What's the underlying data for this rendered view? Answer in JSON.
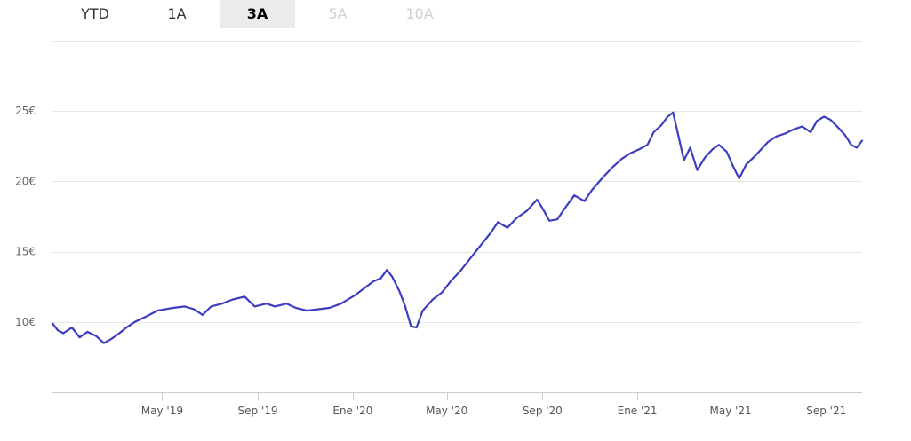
{
  "tabs": [
    {
      "label": "YTD",
      "state": "normal"
    },
    {
      "label": "1A",
      "state": "normal"
    },
    {
      "label": "3A",
      "state": "active"
    },
    {
      "label": "5A",
      "state": "disabled"
    },
    {
      "label": "10A",
      "state": "disabled"
    }
  ],
  "colors": {
    "line": "#3d3dbf",
    "grid": "#e6e6e6",
    "axis": "#cccccc",
    "tab_active_bg": "#ebebeb"
  },
  "chart_data": {
    "type": "line",
    "title": "",
    "xlabel": "",
    "ylabel": "",
    "ylim": [
      5,
      30
    ],
    "xlim": [
      "2018-12-11",
      "2021-10-17"
    ],
    "y_tick_labels": [
      "10€",
      "15€",
      "20€",
      "25€"
    ],
    "y_tick_values": [
      10,
      15,
      20,
      25
    ],
    "x_tick_labels": [
      "May '19",
      "Sep '19",
      "Ene '20",
      "May '20",
      "Sep '20",
      "Ene '21",
      "May '21",
      "Sep '21"
    ],
    "x_tick_dates": [
      "2019-05-01",
      "2019-09-01",
      "2020-01-01",
      "2020-05-01",
      "2020-09-01",
      "2021-01-01",
      "2021-05-01",
      "2021-09-01"
    ],
    "grid": true,
    "legend": "none",
    "series": [
      {
        "points": [
          [
            "2018-12-11",
            9.9
          ],
          [
            "2018-12-18",
            9.4
          ],
          [
            "2018-12-25",
            9.2
          ],
          [
            "2019-01-05",
            9.6
          ],
          [
            "2019-01-15",
            8.9
          ],
          [
            "2019-01-25",
            9.3
          ],
          [
            "2019-02-05",
            9.0
          ],
          [
            "2019-02-15",
            8.5
          ],
          [
            "2019-02-25",
            8.8
          ],
          [
            "2019-03-07",
            9.2
          ],
          [
            "2019-03-16",
            9.6
          ],
          [
            "2019-03-27",
            10.0
          ],
          [
            "2019-04-11",
            10.4
          ],
          [
            "2019-04-25",
            10.8
          ],
          [
            "2019-05-15",
            11.0
          ],
          [
            "2019-05-30",
            11.1
          ],
          [
            "2019-06-11",
            10.9
          ],
          [
            "2019-06-22",
            10.5
          ],
          [
            "2019-07-03",
            11.1
          ],
          [
            "2019-07-17",
            11.3
          ],
          [
            "2019-07-31",
            11.6
          ],
          [
            "2019-08-15",
            11.8
          ],
          [
            "2019-08-28",
            11.1
          ],
          [
            "2019-09-12",
            11.3
          ],
          [
            "2019-09-23",
            11.1
          ],
          [
            "2019-10-08",
            11.3
          ],
          [
            "2019-10-20",
            11.0
          ],
          [
            "2019-11-03",
            10.8
          ],
          [
            "2019-11-18",
            10.9
          ],
          [
            "2019-12-02",
            11.0
          ],
          [
            "2019-12-17",
            11.3
          ],
          [
            "2020-01-04",
            11.9
          ],
          [
            "2020-01-16",
            12.4
          ],
          [
            "2020-01-28",
            12.9
          ],
          [
            "2020-02-06",
            13.1
          ],
          [
            "2020-02-14",
            13.7
          ],
          [
            "2020-02-21",
            13.2
          ],
          [
            "2020-03-01",
            12.2
          ],
          [
            "2020-03-08",
            11.2
          ],
          [
            "2020-03-16",
            9.7
          ],
          [
            "2020-03-23",
            9.6
          ],
          [
            "2020-03-31",
            10.8
          ],
          [
            "2020-04-13",
            11.6
          ],
          [
            "2020-04-25",
            12.1
          ],
          [
            "2020-05-06",
            12.9
          ],
          [
            "2020-05-18",
            13.6
          ],
          [
            "2020-05-31",
            14.5
          ],
          [
            "2020-06-10",
            15.2
          ],
          [
            "2020-06-26",
            16.3
          ],
          [
            "2020-07-06",
            17.1
          ],
          [
            "2020-07-18",
            16.7
          ],
          [
            "2020-07-30",
            17.4
          ],
          [
            "2020-08-12",
            17.9
          ],
          [
            "2020-08-25",
            18.7
          ],
          [
            "2020-09-01",
            18.1
          ],
          [
            "2020-09-10",
            17.2
          ],
          [
            "2020-09-20",
            17.3
          ],
          [
            "2020-09-30",
            18.1
          ],
          [
            "2020-10-12",
            19.0
          ],
          [
            "2020-10-25",
            18.6
          ],
          [
            "2020-11-04",
            19.4
          ],
          [
            "2020-11-18",
            20.3
          ],
          [
            "2020-11-30",
            21.0
          ],
          [
            "2020-12-12",
            21.6
          ],
          [
            "2020-12-23",
            22.0
          ],
          [
            "2021-01-04",
            22.3
          ],
          [
            "2021-01-14",
            22.6
          ],
          [
            "2021-01-22",
            23.5
          ],
          [
            "2021-02-01",
            24.0
          ],
          [
            "2021-02-09",
            24.6
          ],
          [
            "2021-02-16",
            24.9
          ],
          [
            "2021-02-23",
            23.2
          ],
          [
            "2021-03-02",
            21.5
          ],
          [
            "2021-03-10",
            22.4
          ],
          [
            "2021-03-19",
            20.8
          ],
          [
            "2021-03-29",
            21.7
          ],
          [
            "2021-04-08",
            22.3
          ],
          [
            "2021-04-16",
            22.6
          ],
          [
            "2021-04-26",
            22.1
          ],
          [
            "2021-05-04",
            21.1
          ],
          [
            "2021-05-12",
            20.2
          ],
          [
            "2021-05-21",
            21.2
          ],
          [
            "2021-06-03",
            21.9
          ],
          [
            "2021-06-18",
            22.8
          ],
          [
            "2021-06-29",
            23.2
          ],
          [
            "2021-07-10",
            23.4
          ],
          [
            "2021-07-21",
            23.7
          ],
          [
            "2021-08-01",
            23.9
          ],
          [
            "2021-08-12",
            23.5
          ],
          [
            "2021-08-20",
            24.3
          ],
          [
            "2021-08-29",
            24.6
          ],
          [
            "2021-09-06",
            24.4
          ],
          [
            "2021-09-15",
            23.9
          ],
          [
            "2021-09-25",
            23.3
          ],
          [
            "2021-10-03",
            22.6
          ],
          [
            "2021-10-10",
            22.4
          ],
          [
            "2021-10-17",
            22.9
          ]
        ]
      }
    ]
  }
}
